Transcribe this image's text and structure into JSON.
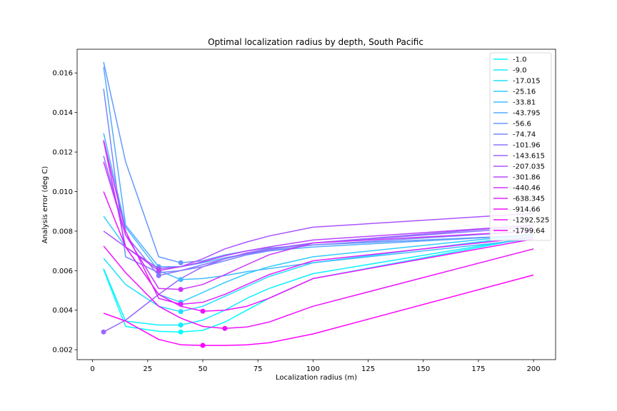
{
  "chart_data": {
    "type": "line",
    "title": "Optimal localization radius by depth, South Pacific",
    "xlabel": "Localization radius (m)",
    "ylabel": "Analysis error (deg C)",
    "xlim": [
      -7,
      210
    ],
    "ylim": [
      0.0015,
      0.0172
    ],
    "xticks": [
      0,
      25,
      50,
      75,
      100,
      125,
      150,
      175,
      200
    ],
    "xtick_labels": [
      "0",
      "25",
      "50",
      "75",
      "100",
      "125",
      "150",
      "175",
      "200"
    ],
    "yticks": [
      0.002,
      0.004,
      0.006,
      0.008,
      0.01,
      0.012,
      0.014,
      0.016
    ],
    "ytick_labels": [
      "0.002",
      "0.004",
      "0.006",
      "0.008",
      "0.010",
      "0.012",
      "0.014",
      "0.016"
    ],
    "grid": false,
    "legend_position": "upper right",
    "x": [
      5,
      15,
      30,
      40,
      50,
      60,
      70,
      80,
      100,
      200
    ],
    "series": [
      {
        "name": "-1.0",
        "color": "#00ffff",
        "values": [
          0.00605,
          0.00318,
          0.00293,
          0.0029,
          0.00298,
          0.0034,
          0.004,
          0.0046,
          0.0056,
          0.0077
        ],
        "min_x": 40,
        "min_y": 0.0029
      },
      {
        "name": "-9.0",
        "color": "#11eeff",
        "values": [
          0.0061,
          0.00345,
          0.00325,
          0.00325,
          0.0035,
          0.004,
          0.0046,
          0.0051,
          0.00585,
          0.0077
        ],
        "min_x": 40,
        "min_y": 0.00325
      },
      {
        "name": "-17.015",
        "color": "#22ddff",
        "values": [
          0.00662,
          0.0053,
          0.0042,
          0.00393,
          0.0042,
          0.0047,
          0.0052,
          0.0057,
          0.0064,
          0.0078
        ],
        "min_x": 40,
        "min_y": 0.00393
      },
      {
        "name": "-25.16",
        "color": "#33ccff",
        "values": [
          0.00875,
          0.0072,
          0.0048,
          0.0044,
          0.0049,
          0.0054,
          0.00585,
          0.0062,
          0.0067,
          0.00785
        ],
        "min_x": 40,
        "min_y": 0.0044
      },
      {
        "name": "-33.81",
        "color": "#44bbff",
        "values": [
          0.01295,
          0.0082,
          0.006,
          0.00555,
          0.0056,
          0.00575,
          0.00595,
          0.0061,
          0.0064,
          0.0076
        ],
        "min_x": 40,
        "min_y": 0.00555
      },
      {
        "name": "-43.795",
        "color": "#55aaff",
        "values": [
          0.0163,
          0.0083,
          0.0062,
          0.0062,
          0.0064,
          0.00665,
          0.00685,
          0.007,
          0.0072,
          0.0078
        ],
        "min_x": 30,
        "min_y": 0.0062
      },
      {
        "name": "-56.6",
        "color": "#6699ff",
        "values": [
          0.01655,
          0.0115,
          0.0067,
          0.0064,
          0.0065,
          0.0068,
          0.007,
          0.00715,
          0.0073,
          0.0078
        ],
        "min_x": 40,
        "min_y": 0.0064
      },
      {
        "name": "-74.74",
        "color": "#7788ff",
        "values": [
          0.0152,
          0.0067,
          0.0059,
          0.006,
          0.0062,
          0.0065,
          0.0068,
          0.007,
          0.0073,
          0.008
        ],
        "min_x": 30,
        "min_y": 0.0059
      },
      {
        "name": "-101.96",
        "color": "#8877ff",
        "values": [
          0.0118,
          0.0078,
          0.00575,
          0.006,
          0.0063,
          0.0066,
          0.00685,
          0.00705,
          0.0074,
          0.0082
        ],
        "min_x": 30,
        "min_y": 0.00575
      },
      {
        "name": "-143.615",
        "color": "#9966ff",
        "values": [
          0.0029,
          0.0035,
          0.0048,
          0.0056,
          0.0062,
          0.0066,
          0.0069,
          0.0071,
          0.0074,
          0.0083
        ],
        "min_x": 5,
        "min_y": 0.0029
      },
      {
        "name": "-207.035",
        "color": "#aa55ff",
        "values": [
          0.008,
          0.0072,
          0.0061,
          0.0062,
          0.0066,
          0.0071,
          0.00745,
          0.00775,
          0.0082,
          0.0089
        ],
        "min_x": 30,
        "min_y": 0.0061
      },
      {
        "name": "-301.86",
        "color": "#bb44ff",
        "values": [
          0.01255,
          0.0072,
          0.006,
          0.0062,
          0.00645,
          0.00675,
          0.007,
          0.0072,
          0.00755,
          0.0083
        ],
        "min_x": 30,
        "min_y": 0.006
      },
      {
        "name": "-440.46",
        "color": "#cc33ff",
        "values": [
          0.0115,
          0.0078,
          0.0051,
          0.00505,
          0.0053,
          0.0058,
          0.0063,
          0.0068,
          0.0074,
          0.008
        ],
        "min_x": 40,
        "min_y": 0.00505
      },
      {
        "name": "-638.345",
        "color": "#dd22ff",
        "values": [
          0.0126,
          0.008,
          0.0046,
          0.0043,
          0.0044,
          0.0048,
          0.0053,
          0.0058,
          0.0065,
          0.0077
        ],
        "min_x": 40,
        "min_y": 0.0043
      },
      {
        "name": "-914.66",
        "color": "#ee11ff",
        "values": [
          0.01,
          0.0072,
          0.0048,
          0.0042,
          0.00395,
          0.004,
          0.0042,
          0.0046,
          0.0056,
          0.0076
        ],
        "min_x": 50,
        "min_y": 0.00395
      },
      {
        "name": "-1292.525",
        "color": "#ee11ff",
        "values": [
          0.00725,
          0.0059,
          0.0042,
          0.0036,
          0.00318,
          0.00308,
          0.00315,
          0.0034,
          0.0042,
          0.0071
        ],
        "min_x": 60,
        "min_y": 0.00308
      },
      {
        "name": "-1799.64",
        "color": "#ff00ff",
        "values": [
          0.00385,
          0.00345,
          0.00252,
          0.00225,
          0.00222,
          0.00222,
          0.00225,
          0.00235,
          0.0028,
          0.00578
        ],
        "min_x": 50,
        "min_y": 0.00222
      }
    ]
  }
}
